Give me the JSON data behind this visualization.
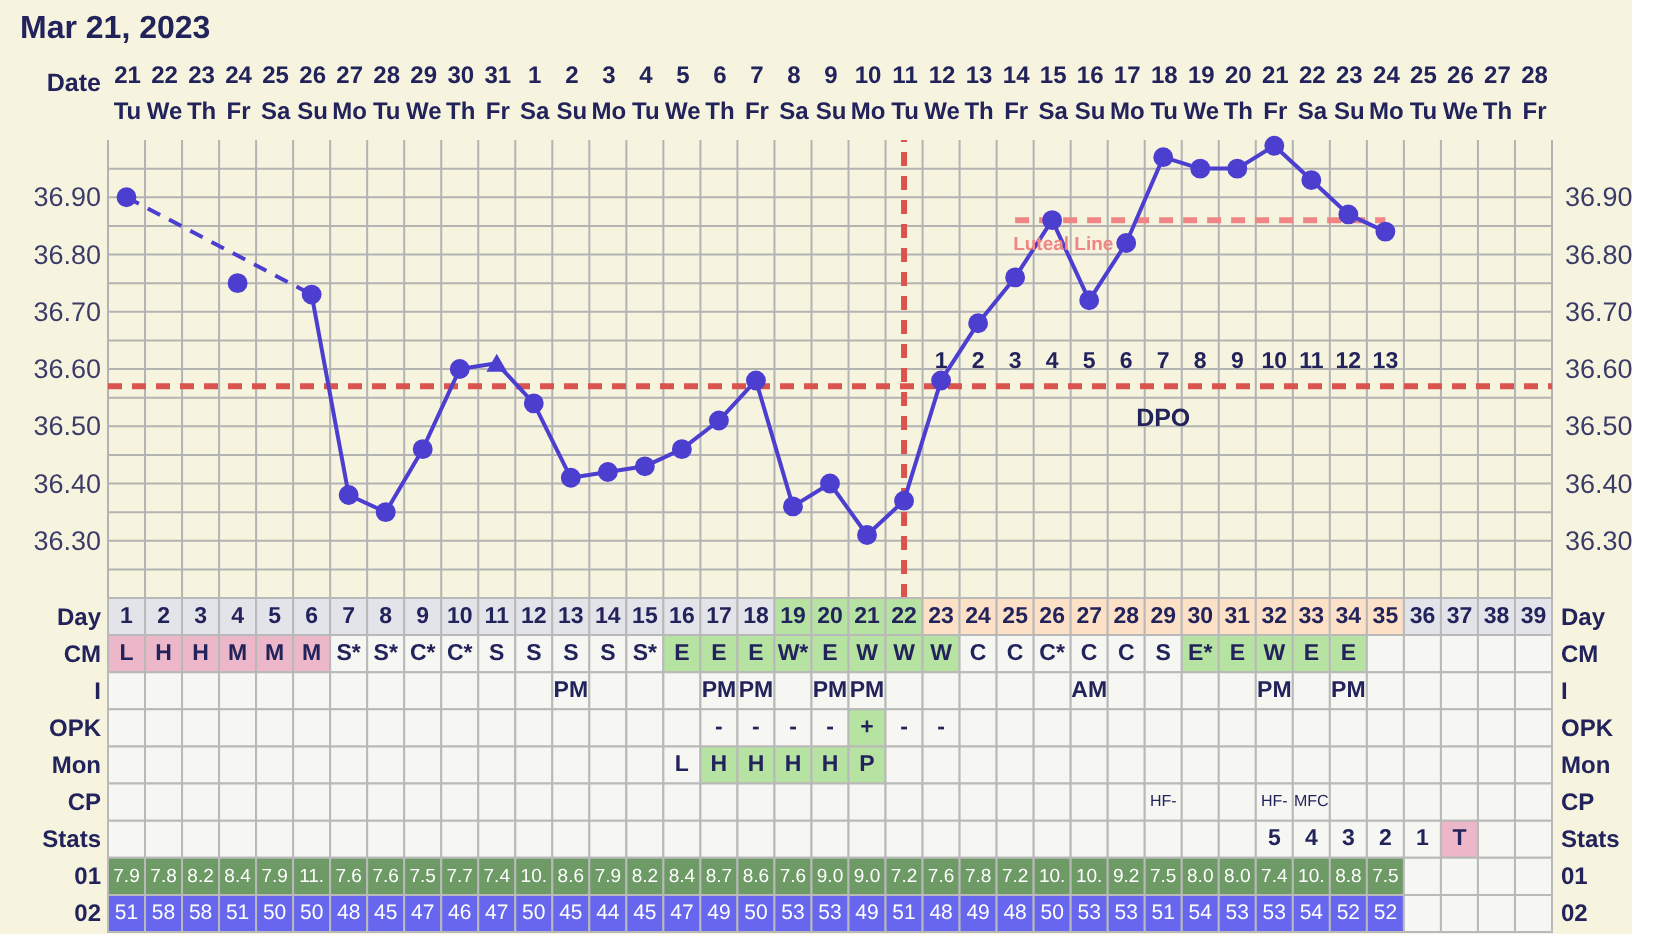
{
  "chart_data": [
    {
      "type": "line",
      "title": "Mar 21, 2023",
      "xlabel": "Date",
      "categories": [
        "21\nTu",
        "22\nWe",
        "23\nTh",
        "24\nFr",
        "25\nSa",
        "26\nSu",
        "27\nMo",
        "28\nTu",
        "29\nWe",
        "30\nTh",
        "31\nFr",
        "1\nSa",
        "2\nSu",
        "3\nMo",
        "4\nTu",
        "5\nWe",
        "6\nTh",
        "7\nFr",
        "8\nSa",
        "9\nSu",
        "10\nMo",
        "11\nTu",
        "12\nWe",
        "13\nTh",
        "14\nFr",
        "15\nSa",
        "16\nSu",
        "17\nMo",
        "18\nTu",
        "19\nWe",
        "20\nTh",
        "21\nFr",
        "22\nSa",
        "23\nSu",
        "24\nMo",
        "25\nTu",
        "26\nWe",
        "27\nTh",
        "28\nFr"
      ],
      "ylim": [
        36.2,
        37.0
      ],
      "yticks": [
        {
          "value": 36.25,
          "label": null
        },
        {
          "value": 36.3,
          "label": "36.30"
        },
        {
          "value": 36.35,
          "label": null
        },
        {
          "value": 36.4,
          "label": "36.40"
        },
        {
          "value": 36.45,
          "label": null
        },
        {
          "value": 36.5,
          "label": "36.50"
        },
        {
          "value": 36.55,
          "label": null
        },
        {
          "value": 36.6,
          "label": "36.60"
        },
        {
          "value": 36.65,
          "label": null
        },
        {
          "value": 36.7,
          "label": "36.70"
        },
        {
          "value": 36.75,
          "label": null
        },
        {
          "value": 36.8,
          "label": "36.80"
        },
        {
          "value": 36.85,
          "label": null
        },
        {
          "value": 36.9,
          "label": "36.90"
        },
        {
          "value": 36.95,
          "label": null
        }
      ],
      "y2lim": [
        36.2,
        37.0
      ],
      "y2ticks": [
        {
          "value": 36.3,
          "label": "36.30"
        },
        {
          "value": 36.4,
          "label": "36.40"
        },
        {
          "value": 36.5,
          "label": "36.50"
        },
        {
          "value": 36.6,
          "label": "36.60"
        },
        {
          "value": 36.7,
          "label": "36.70"
        },
        {
          "value": 36.8,
          "label": "36.80"
        },
        {
          "value": 36.9,
          "label": "36.90"
        }
      ],
      "grid": true,
      "ref_lines": [
        {
          "axis": "y",
          "value": 36.57,
          "color": "#d9534f",
          "line_style": "dashed"
        },
        {
          "axis": "x",
          "value": "11\nTu",
          "color": "#d9534f",
          "line_style": "dashed"
        }
      ],
      "series": [
        {
          "type": "line",
          "name": "Luteal Line",
          "color": "#ef8585",
          "line_style": "dashed",
          "marker": "none",
          "x": [
            "14\nFr",
            "24\nMo"
          ],
          "values": [
            36.86,
            36.86
          ]
        },
        {
          "type": "line",
          "color": "#4c3fd0",
          "line_style": "dashed",
          "marker": "none",
          "x": [
            "21\nTu",
            "26\nSu"
          ],
          "values": [
            36.9,
            36.73
          ]
        },
        {
          "type": "line",
          "color": "#4c3fd0",
          "line_style": "solid",
          "marker": "none",
          "values": [
            null,
            null,
            null,
            null,
            null,
            36.73,
            36.38,
            36.35,
            36.46,
            36.6,
            36.61,
            36.54,
            36.41,
            36.42,
            36.43,
            36.46,
            36.51,
            36.58,
            36.36,
            36.4,
            36.31,
            36.37,
            36.58,
            36.68,
            36.76,
            36.86,
            36.72,
            36.82,
            36.97,
            36.95,
            36.95,
            36.99,
            36.93,
            36.87,
            36.84,
            null,
            null,
            null,
            null
          ]
        },
        {
          "type": "scatter",
          "color": "#4c3fd0",
          "marker": "circle",
          "values": [
            36.9,
            null,
            null,
            36.75,
            null,
            36.73,
            36.38,
            36.35,
            36.46,
            36.6,
            null,
            36.54,
            36.41,
            36.42,
            36.43,
            36.46,
            36.51,
            36.58,
            36.36,
            36.4,
            36.31,
            36.37,
            36.58,
            36.68,
            36.76,
            36.86,
            36.72,
            36.82,
            36.97,
            36.95,
            36.95,
            36.99,
            36.93,
            36.87,
            36.84,
            null,
            null,
            null,
            null
          ]
        },
        {
          "type": "scatter",
          "color": "#4c3fd0",
          "marker": "triangle",
          "x": [
            "31\nFr"
          ],
          "values": [
            36.61
          ]
        }
      ],
      "annotations": [
        "1",
        "2",
        "3",
        "4",
        "5",
        "6",
        "7",
        "8",
        "9",
        "10",
        "11",
        "12",
        "13",
        "DPO"
      ]
    },
    {
      "type": "heatmap",
      "categories": [
        null,
        null,
        null,
        null,
        null,
        null,
        null,
        null,
        null,
        null,
        null,
        null,
        null,
        null,
        null,
        null,
        null,
        null,
        null,
        null,
        null,
        null,
        null,
        null,
        null,
        null,
        null,
        null,
        null,
        null,
        null,
        null,
        null,
        null,
        null,
        null,
        null,
        null,
        null
      ],
      "y_categories": [
        "Day",
        "CM",
        "I",
        "OPK",
        "Mon",
        "CP",
        "Stats",
        "01",
        "02"
      ],
      "y2_categories": [
        "Day",
        "CM",
        "I",
        "OPK",
        "Mon",
        "CP",
        "Stats",
        "01",
        "02"
      ],
      "cells": [
        [
          null,
          null,
          null,
          null,
          null,
          null,
          null,
          null,
          null,
          null,
          null,
          null,
          null,
          null,
          null,
          null,
          null,
          null,
          null,
          null,
          null,
          null,
          null,
          null,
          null,
          null,
          null,
          null,
          null,
          null,
          null,
          null,
          null,
          null,
          null,
          null,
          null,
          null,
          null
        ],
        [
          null,
          null,
          null,
          null,
          null,
          null,
          null,
          null,
          null,
          null,
          null,
          null,
          null,
          null,
          null,
          null,
          null,
          null,
          null,
          null,
          null,
          null,
          null,
          null,
          null,
          null,
          null,
          null,
          null,
          null,
          null,
          null,
          null,
          null,
          null,
          null,
          null,
          null,
          null
        ],
        [
          null,
          null,
          null,
          null,
          null,
          null,
          null,
          null,
          null,
          null,
          null,
          null,
          null,
          null,
          null,
          null,
          null,
          null,
          null,
          null,
          null,
          null,
          null,
          null,
          null,
          null,
          null,
          null,
          null,
          null,
          null,
          null,
          null,
          null,
          null,
          null,
          null,
          null,
          null
        ],
        [
          null,
          null,
          null,
          null,
          null,
          null,
          null,
          null,
          null,
          null,
          null,
          null,
          null,
          null,
          null,
          null,
          null,
          null,
          null,
          null,
          null,
          null,
          null,
          null,
          null,
          null,
          null,
          null,
          null,
          null,
          null,
          null,
          null,
          null,
          null,
          null,
          null,
          null,
          null
        ],
        [
          null,
          null,
          null,
          null,
          null,
          null,
          null,
          null,
          null,
          null,
          null,
          null,
          null,
          null,
          null,
          null,
          null,
          null,
          null,
          null,
          null,
          null,
          null,
          null,
          null,
          null,
          null,
          null,
          null,
          null,
          null,
          null,
          null,
          null,
          null,
          null,
          null,
          null,
          null
        ],
        [
          null,
          null,
          null,
          null,
          null,
          null,
          null,
          null,
          null,
          null,
          null,
          null,
          null,
          null,
          null,
          null,
          null,
          null,
          null,
          null,
          null,
          null,
          null,
          null,
          null,
          null,
          null,
          null,
          null,
          null,
          null,
          null,
          null,
          null,
          null,
          null,
          null,
          null,
          null
        ],
        [
          null,
          null,
          null,
          null,
          null,
          null,
          null,
          null,
          null,
          null,
          null,
          null,
          null,
          null,
          null,
          null,
          null,
          null,
          null,
          null,
          null,
          null,
          null,
          null,
          null,
          null,
          null,
          null,
          null,
          null,
          null,
          null,
          null,
          null,
          null,
          null,
          null,
          null,
          null
        ],
        [
          null,
          null,
          null,
          null,
          null,
          null,
          null,
          null,
          null,
          null,
          null,
          null,
          null,
          null,
          null,
          null,
          null,
          null,
          null,
          null,
          null,
          null,
          null,
          null,
          null,
          null,
          null,
          null,
          null,
          null,
          null,
          null,
          null,
          null,
          null,
          null,
          null,
          null,
          null
        ],
        [
          null,
          null,
          null,
          null,
          null,
          null,
          null,
          null,
          null,
          null,
          null,
          null,
          null,
          null,
          null,
          null,
          null,
          null,
          null,
          null,
          null,
          null,
          null,
          null,
          null,
          null,
          null,
          null,
          null,
          null,
          null,
          null,
          null,
          null,
          null,
          null,
          null,
          null,
          null
        ]
      ],
      "cell_labels": [
        [
          "1",
          "2",
          "3",
          "4",
          "5",
          "6",
          "7",
          "8",
          "9",
          "10",
          "11",
          "12",
          "13",
          "14",
          "15",
          "16",
          "17",
          "18",
          "19",
          "20",
          "21",
          "22",
          "23",
          "24",
          "25",
          "26",
          "27",
          "28",
          "29",
          "30",
          "31",
          "32",
          "33",
          "34",
          "35",
          "36",
          "37",
          "38",
          "39"
        ],
        [
          "L",
          "H",
          "H",
          "M",
          "M",
          "M",
          "S*",
          "S*",
          "C*",
          "C*",
          "S",
          "S",
          "S",
          "S",
          "S*",
          "E",
          "E",
          "E",
          "W*",
          "E",
          "W",
          "W",
          "W",
          "C",
          "C",
          "C*",
          "C",
          "C",
          "S",
          "E*",
          "E",
          "W",
          "E",
          "E",
          null,
          null,
          null,
          null,
          null
        ],
        [
          null,
          null,
          null,
          null,
          null,
          null,
          null,
          null,
          null,
          null,
          null,
          null,
          "PM",
          null,
          null,
          null,
          "PM",
          "PM",
          null,
          "PM",
          "PM",
          null,
          null,
          null,
          null,
          null,
          "AM",
          null,
          null,
          null,
          null,
          "PM",
          null,
          "PM",
          null,
          null,
          null,
          null,
          null
        ],
        [
          null,
          null,
          null,
          null,
          null,
          null,
          null,
          null,
          null,
          null,
          null,
          null,
          null,
          null,
          null,
          null,
          "-",
          "-",
          "-",
          "-",
          "+",
          "-",
          "-",
          null,
          null,
          null,
          null,
          null,
          null,
          null,
          null,
          null,
          null,
          null,
          null,
          null,
          null,
          null,
          null
        ],
        [
          null,
          null,
          null,
          null,
          null,
          null,
          null,
          null,
          null,
          null,
          null,
          null,
          null,
          null,
          null,
          "L",
          "H",
          "H",
          "H",
          "H",
          "P",
          null,
          null,
          null,
          null,
          null,
          null,
          null,
          null,
          null,
          null,
          null,
          null,
          null,
          null,
          null,
          null,
          null,
          null
        ],
        [
          null,
          null,
          null,
          null,
          null,
          null,
          null,
          null,
          null,
          null,
          null,
          null,
          null,
          null,
          null,
          null,
          null,
          null,
          null,
          null,
          null,
          null,
          null,
          null,
          null,
          null,
          null,
          null,
          "HF-",
          null,
          null,
          "HF-",
          "MFC",
          null,
          null,
          null,
          null,
          null,
          null
        ],
        [
          null,
          null,
          null,
          null,
          null,
          null,
          null,
          null,
          null,
          null,
          null,
          null,
          null,
          null,
          null,
          null,
          null,
          null,
          null,
          null,
          null,
          null,
          null,
          null,
          null,
          null,
          null,
          null,
          null,
          null,
          null,
          "5",
          "4",
          "3",
          "2",
          "1",
          "T",
          null,
          null
        ],
        [
          "7.9",
          "7.8",
          "8.2",
          "8.4",
          "7.9",
          "11.",
          "7.6",
          "7.6",
          "7.5",
          "7.7",
          "7.4",
          "10.",
          "8.6",
          "7.9",
          "8.2",
          "8.4",
          "8.7",
          "8.6",
          "7.6",
          "9.0",
          "9.0",
          "7.2",
          "7.6",
          "7.8",
          "7.2",
          "10.",
          "10.",
          "9.2",
          "7.5",
          "8.0",
          "8.0",
          "7.4",
          "10.",
          "8.8",
          "7.5",
          null,
          null,
          null,
          null
        ],
        [
          "51",
          "58",
          "58",
          "51",
          "50",
          "50",
          "48",
          "45",
          "47",
          "46",
          "47",
          "50",
          "45",
          "44",
          "45",
          "47",
          "49",
          "50",
          "53",
          "53",
          "49",
          "51",
          "48",
          "49",
          "48",
          "50",
          "53",
          "53",
          "51",
          "54",
          "53",
          "53",
          "54",
          "52",
          "52",
          null,
          null,
          null,
          null
        ]
      ],
      "colors": [
        [
          "#e3e3ea",
          "#e3e3ea",
          "#e3e3ea",
          "#e3e3ea",
          "#e3e3ea",
          "#e3e3ea",
          "#e3e3ea",
          "#e3e3ea",
          "#e3e3ea",
          "#e3e3ea",
          "#e3e3ea",
          "#e3e3ea",
          "#e3e3ea",
          "#e3e3ea",
          "#e3e3ea",
          "#e3e3ea",
          "#e3e3ea",
          "#e3e3ea",
          "#b6e3a1",
          "#b6e3a1",
          "#b6e3a1",
          "#b6e3a1",
          "#fde1c6",
          "#fde1c6",
          "#fde1c6",
          "#fde1c6",
          "#fde1c6",
          "#fde1c6",
          "#fde1c6",
          "#fde1c6",
          "#fde1c6",
          "#fde1c6",
          "#fde1c6",
          "#fde1c6",
          "#fde1c6",
          "#e3e3ea",
          "#e3e3ea",
          "#e3e3ea",
          "#e3e3ea"
        ],
        [
          "#ebb7c9",
          "#ebb7c9",
          "#ebb7c9",
          "#ebb7c9",
          "#ebb7c9",
          "#ebb7c9",
          null,
          null,
          null,
          null,
          null,
          null,
          null,
          null,
          null,
          "#b6e3a1",
          "#b6e3a1",
          "#b6e3a1",
          "#b6e3a1",
          "#b6e3a1",
          "#b6e3a1",
          "#b6e3a1",
          "#b6e3a1",
          null,
          null,
          null,
          null,
          null,
          null,
          "#b6e3a1",
          "#b6e3a1",
          "#b6e3a1",
          "#b6e3a1",
          "#b6e3a1",
          null,
          null,
          null,
          null,
          null
        ],
        [
          null,
          null,
          null,
          null,
          null,
          null,
          null,
          null,
          null,
          null,
          null,
          null,
          null,
          null,
          null,
          null,
          null,
          null,
          null,
          null,
          null,
          null,
          null,
          null,
          null,
          null,
          null,
          null,
          null,
          null,
          null,
          null,
          null,
          null,
          null,
          null,
          null,
          null,
          null
        ],
        [
          null,
          null,
          null,
          null,
          null,
          null,
          null,
          null,
          null,
          null,
          null,
          null,
          null,
          null,
          null,
          null,
          null,
          null,
          null,
          null,
          "#b6e3a1",
          null,
          null,
          null,
          null,
          null,
          null,
          null,
          null,
          null,
          null,
          null,
          null,
          null,
          null,
          null,
          null,
          null,
          null
        ],
        [
          null,
          null,
          null,
          null,
          null,
          null,
          null,
          null,
          null,
          null,
          null,
          null,
          null,
          null,
          null,
          null,
          "#b6e3a1",
          "#b6e3a1",
          "#b6e3a1",
          "#b6e3a1",
          "#b6e3a1",
          null,
          null,
          null,
          null,
          null,
          null,
          null,
          null,
          null,
          null,
          null,
          null,
          null,
          null,
          null,
          null,
          null,
          null
        ],
        [
          null,
          null,
          null,
          null,
          null,
          null,
          null,
          null,
          null,
          null,
          null,
          null,
          null,
          null,
          null,
          null,
          null,
          null,
          null,
          null,
          null,
          null,
          null,
          null,
          null,
          null,
          null,
          null,
          null,
          null,
          null,
          null,
          null,
          null,
          null,
          null,
          null,
          null,
          null
        ],
        [
          null,
          null,
          null,
          null,
          null,
          null,
          null,
          null,
          null,
          null,
          null,
          null,
          null,
          null,
          null,
          null,
          null,
          null,
          null,
          null,
          null,
          null,
          null,
          null,
          null,
          null,
          null,
          null,
          null,
          null,
          null,
          null,
          null,
          null,
          null,
          null,
          "#ebb7c9",
          null,
          null
        ],
        [
          "#6d9a65",
          "#6d9a65",
          "#6d9a65",
          "#6d9a65",
          "#6d9a65",
          "#6d9a65",
          "#6d9a65",
          "#6d9a65",
          "#6d9a65",
          "#6d9a65",
          "#6d9a65",
          "#6d9a65",
          "#6d9a65",
          "#6d9a65",
          "#6d9a65",
          "#6d9a65",
          "#6d9a65",
          "#6d9a65",
          "#6d9a65",
          "#6d9a65",
          "#6d9a65",
          "#6d9a65",
          "#6d9a65",
          "#6d9a65",
          "#6d9a65",
          "#6d9a65",
          "#6d9a65",
          "#6d9a65",
          "#6d9a65",
          "#6d9a65",
          "#6d9a65",
          "#6d9a65",
          "#6d9a65",
          "#6d9a65",
          "#6d9a65",
          null,
          null,
          null,
          null
        ],
        [
          "#6666ee",
          "#6666ee",
          "#6666ee",
          "#6666ee",
          "#6666ee",
          "#6666ee",
          "#6666ee",
          "#6666ee",
          "#6666ee",
          "#6666ee",
          "#6666ee",
          "#6666ee",
          "#6666ee",
          "#6666ee",
          "#6666ee",
          "#6666ee",
          "#6666ee",
          "#6666ee",
          "#6666ee",
          "#6666ee",
          "#6666ee",
          "#6666ee",
          "#6666ee",
          "#6666ee",
          "#6666ee",
          "#6666ee",
          "#6666ee",
          "#6666ee",
          "#6666ee",
          "#6666ee",
          "#6666ee",
          "#6666ee",
          "#6666ee",
          "#6666ee",
          "#6666ee",
          null,
          null,
          null,
          null
        ]
      ]
    }
  ]
}
